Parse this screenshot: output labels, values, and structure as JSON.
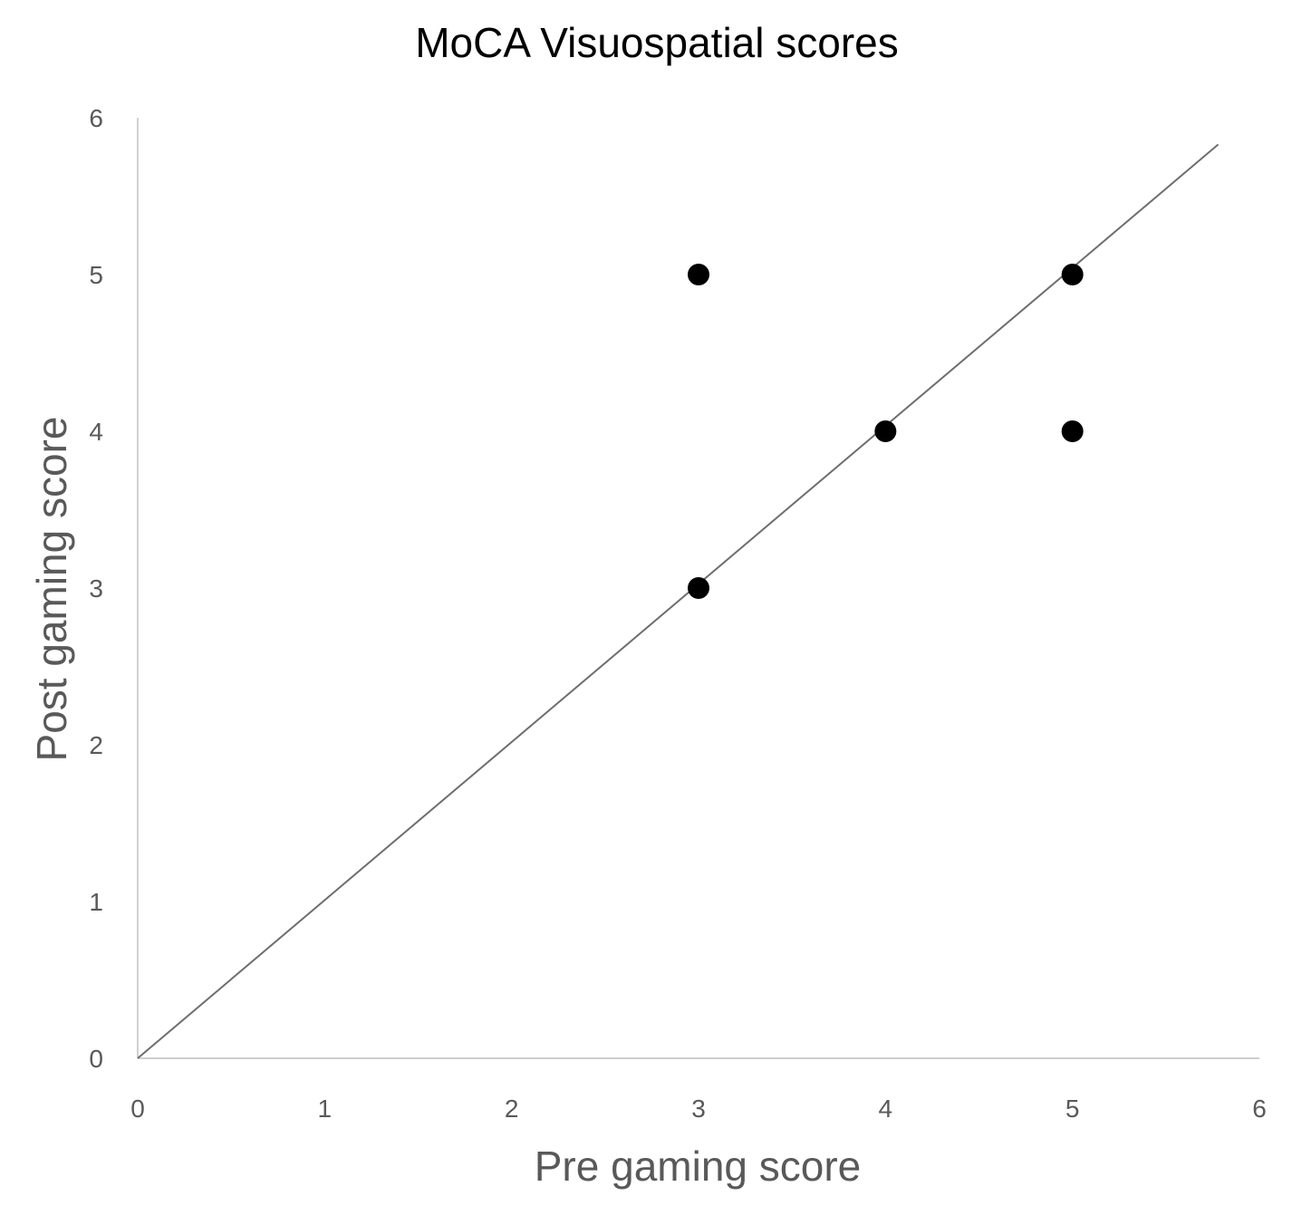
{
  "chart_data": {
    "type": "scatter",
    "title": "MoCA Visuospatial scores",
    "xlabel": "Pre gaming score",
    "ylabel": "Post gaming score",
    "xlim": [
      0,
      6
    ],
    "ylim": [
      0,
      6
    ],
    "x_ticks": [
      "0",
      "1",
      "2",
      "3",
      "4",
      "5",
      "6"
    ],
    "y_ticks": [
      "0",
      "1",
      "2",
      "3",
      "4",
      "5",
      "6"
    ],
    "grid": false,
    "legend": "none",
    "series": [
      {
        "points": [
          {
            "x": 3,
            "y": 5
          },
          {
            "x": 5,
            "y": 5
          },
          {
            "x": 4,
            "y": 4
          },
          {
            "x": 5,
            "y": 4
          },
          {
            "x": 3,
            "y": 3
          }
        ]
      }
    ],
    "reference_line": {
      "from": [
        0,
        0
      ],
      "to": [
        5.78,
        5.83
      ]
    },
    "colors": {
      "points": "#000000",
      "line": "#6e6e6e",
      "axis": "#d0d0d0",
      "text": "#595959"
    }
  }
}
